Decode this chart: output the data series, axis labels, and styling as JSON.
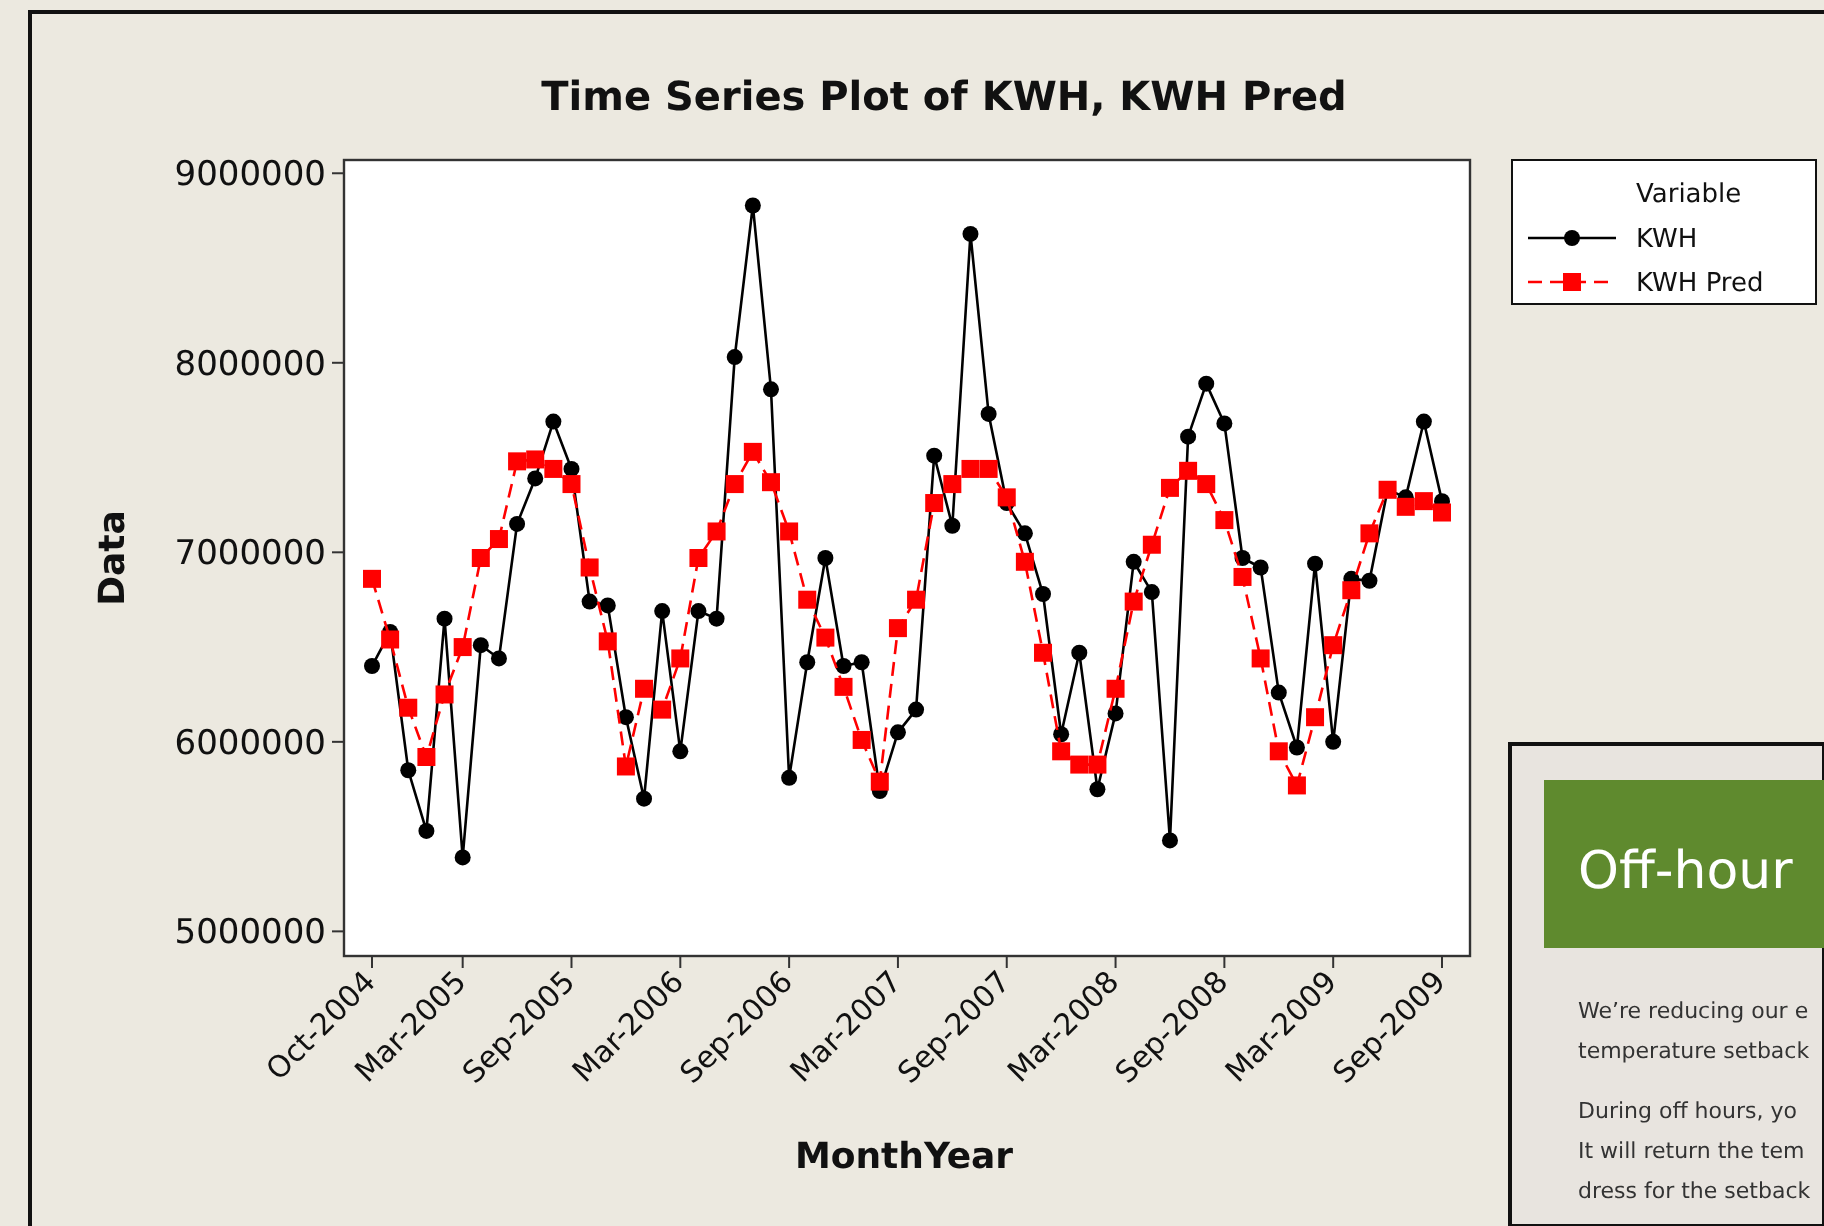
{
  "chart_data": {
    "type": "line",
    "title": "Time Series Plot of KWH, KWH Pred",
    "xlabel": "MonthYear",
    "ylabel": "Data",
    "legend_title": "Variable",
    "legend": "right",
    "categories": [
      "Oct-2004",
      null,
      null,
      null,
      null,
      "Mar-2005",
      null,
      null,
      null,
      null,
      null,
      "Sep-2005",
      null,
      null,
      null,
      null,
      null,
      "Mar-2006",
      null,
      null,
      null,
      null,
      null,
      "Sep-2006",
      null,
      null,
      null,
      null,
      null,
      "Mar-2007",
      null,
      null,
      null,
      null,
      null,
      "Sep-2007",
      null,
      null,
      null,
      null,
      null,
      "Mar-2008",
      null,
      null,
      null,
      null,
      null,
      "Sep-2008",
      null,
      null,
      null,
      null,
      null,
      "Mar-2009",
      null,
      null,
      null,
      null,
      null,
      "Sep-2009"
    ],
    "ylim": [
      4870000,
      9070000
    ],
    "yticks": [
      5000000,
      6000000,
      7000000,
      8000000,
      9000000
    ],
    "series": [
      {
        "name": "KWH",
        "color": "#000000",
        "marker": "circle",
        "line_style": "solid",
        "values": [
          6400000,
          6580000,
          5850000,
          5530000,
          6650000,
          5390000,
          6510000,
          6440000,
          7150000,
          7390000,
          7690000,
          7440000,
          6740000,
          6720000,
          6130000,
          5700000,
          6690000,
          5950000,
          6690000,
          6650000,
          8030000,
          8830000,
          7860000,
          5810000,
          6420000,
          6970000,
          6400000,
          6420000,
          5740000,
          6050000,
          6170000,
          7510000,
          7140000,
          8680000,
          7730000,
          7260000,
          7100000,
          6780000,
          6040000,
          6470000,
          5750000,
          6150000,
          6950000,
          6790000,
          5480000,
          7610000,
          7890000,
          7680000,
          6970000,
          6920000,
          6260000,
          5970000,
          6940000,
          6000000,
          6860000,
          6850000,
          7330000,
          7290000,
          7690000,
          7270000
        ]
      },
      {
        "name": "KWH Pred",
        "color": "#ff0000",
        "marker": "square",
        "line_style": "dashed",
        "values": [
          6860000,
          6540000,
          6180000,
          5920000,
          6250000,
          6500000,
          6970000,
          7070000,
          7480000,
          7490000,
          7440000,
          7360000,
          6920000,
          6530000,
          5870000,
          6280000,
          6170000,
          6440000,
          6970000,
          7110000,
          7360000,
          7530000,
          7370000,
          7110000,
          6750000,
          6550000,
          6290000,
          6010000,
          5790000,
          6600000,
          6750000,
          7260000,
          7360000,
          7440000,
          7440000,
          7290000,
          6950000,
          6470000,
          5950000,
          5880000,
          5880000,
          6280000,
          6740000,
          7040000,
          7340000,
          7430000,
          7360000,
          7170000,
          6870000,
          6440000,
          5950000,
          5770000,
          6130000,
          6510000,
          6800000,
          7100000,
          7330000,
          7240000,
          7270000,
          7210000
        ]
      }
    ],
    "annotations": [
      "Off-hour",
      "We’re reducing our e",
      "temperature setback",
      "During off hours, yo",
      "It will return the tem",
      "dress for the setback"
    ]
  }
}
